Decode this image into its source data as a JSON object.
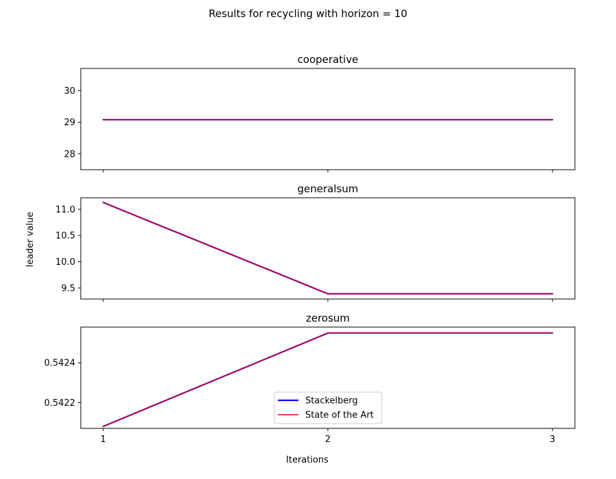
{
  "figure": {
    "suptitle": "Results for recycling with horizon = 10",
    "xlabel": "Iterations",
    "ylabel": "leader value"
  },
  "legend": {
    "placement": "lower-center of bottom panel",
    "entries": [
      {
        "label": "Stackelberg",
        "color": "#0000ff"
      },
      {
        "label": "State of the Art",
        "color": "#e3001b"
      }
    ]
  },
  "chart_data": [
    {
      "type": "line",
      "title": "cooperative",
      "x": [
        1,
        2,
        3
      ],
      "xticks": [
        "1",
        "2",
        "3"
      ],
      "show_xticklabels": false,
      "ylim": [
        27.5,
        30.7
      ],
      "yticks": [
        28,
        29,
        30
      ],
      "ytick_labels": [
        "28",
        "29",
        "30"
      ],
      "grid": false,
      "series": [
        {
          "name": "Stackelberg",
          "values": [
            29.08,
            29.08,
            29.08
          ],
          "color": "#0000ff"
        },
        {
          "name": "State of the Art",
          "values": [
            29.08,
            29.08,
            29.08
          ],
          "color": "#e3001b"
        }
      ]
    },
    {
      "type": "line",
      "title": "generalsum",
      "x": [
        1,
        2,
        3
      ],
      "xticks": [
        "1",
        "2",
        "3"
      ],
      "show_xticklabels": false,
      "ylim": [
        9.29,
        11.22
      ],
      "yticks": [
        9.5,
        10.0,
        10.5,
        11.0
      ],
      "ytick_labels": [
        "9.5",
        "10.0",
        "10.5",
        "11.0"
      ],
      "grid": false,
      "series": [
        {
          "name": "Stackelberg",
          "values": [
            11.13,
            9.39,
            9.39
          ],
          "color": "#0000ff"
        },
        {
          "name": "State of the Art",
          "values": [
            11.13,
            9.39,
            9.39
          ],
          "color": "#e3001b"
        }
      ]
    },
    {
      "type": "line",
      "title": "zerosum",
      "x": [
        1,
        2,
        3
      ],
      "xticks": [
        "1",
        "2",
        "3"
      ],
      "show_xticklabels": true,
      "ylim": [
        0.54207,
        0.54258
      ],
      "yticks": [
        0.5422,
        0.5424
      ],
      "ytick_labels": [
        "0.5422",
        "0.5424"
      ],
      "grid": false,
      "series": [
        {
          "name": "Stackelberg",
          "values": [
            0.54208,
            0.54255,
            0.54255
          ],
          "color": "#0000ff"
        },
        {
          "name": "State of the Art",
          "values": [
            0.54208,
            0.54255,
            0.54255
          ],
          "color": "#e3001b"
        }
      ]
    }
  ]
}
